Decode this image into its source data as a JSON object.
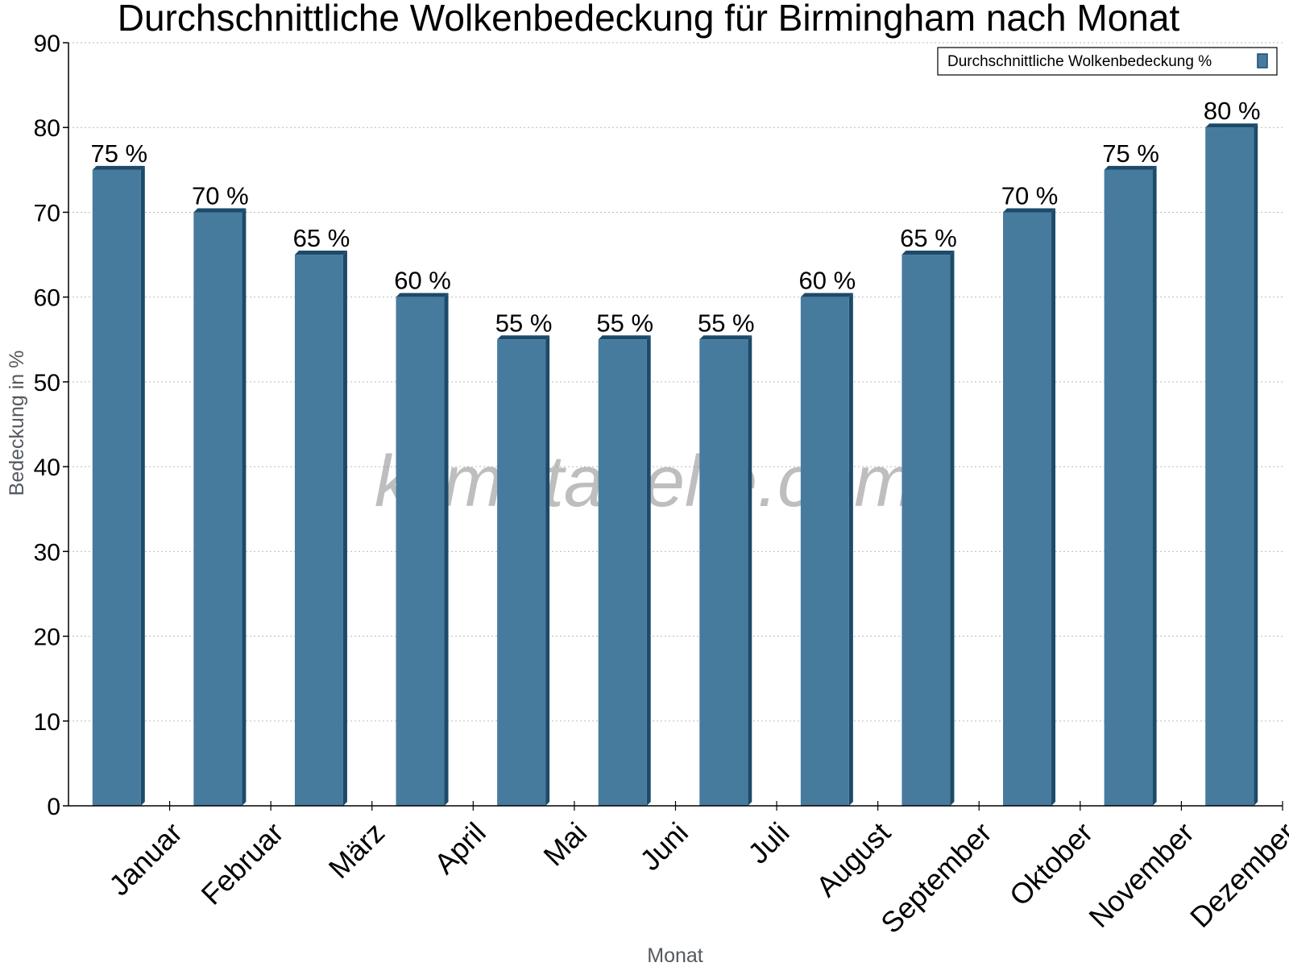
{
  "chart_data": {
    "type": "bar",
    "title": "Durchschnittliche Wolkenbedeckung für Birmingham nach Monat",
    "xlabel": "Monat",
    "ylabel": "Bedeckung in %",
    "categories": [
      "Januar",
      "Februar",
      "März",
      "April",
      "Mai",
      "Juni",
      "Juli",
      "August",
      "September",
      "Oktober",
      "November",
      "Dezember"
    ],
    "series": [
      {
        "name": "Durchschnittliche Wolkenbedeckung %",
        "values": [
          75,
          70,
          65,
          60,
          55,
          55,
          55,
          60,
          65,
          70,
          75,
          80
        ],
        "labels": [
          "75 %",
          "70 %",
          "65 %",
          "60 %",
          "55 %",
          "55 %",
          "55 %",
          "60 %",
          "65 %",
          "70 %",
          "75 %",
          "80 %"
        ]
      }
    ],
    "ylim": [
      0,
      90
    ],
    "yticks": [
      0,
      10,
      20,
      30,
      40,
      50,
      60,
      70,
      80,
      90
    ],
    "grid": true,
    "legend_position": "top-right",
    "colors": {
      "bar_front": "#467b9e",
      "bar_side": "#1c4a6a",
      "grid": "#bbbbbb",
      "axis": "#000000"
    },
    "watermark": "klimatabelle.com"
  }
}
